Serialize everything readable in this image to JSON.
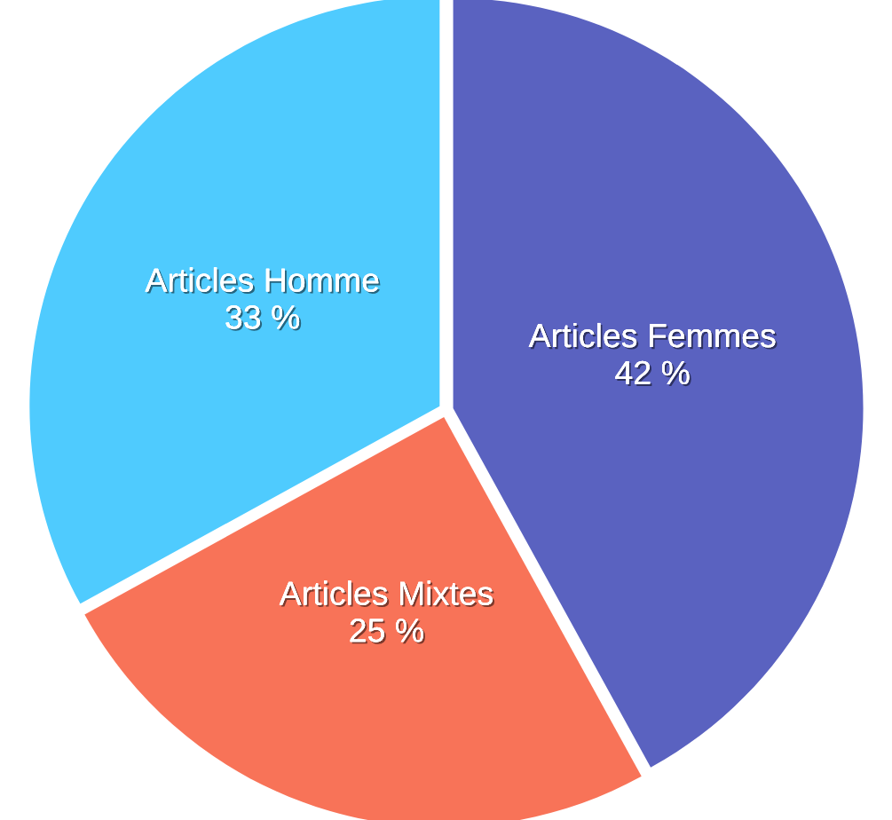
{
  "chart_data": {
    "type": "pie",
    "categories": [
      "Articles Femmes",
      "Articles Mixtes",
      "Articles Homme"
    ],
    "values": [
      42,
      25,
      33
    ],
    "colors": [
      "#5a62c0",
      "#f87358",
      "#4fcbfe"
    ],
    "value_labels": [
      "42 %",
      "25 %",
      "33 %"
    ]
  }
}
